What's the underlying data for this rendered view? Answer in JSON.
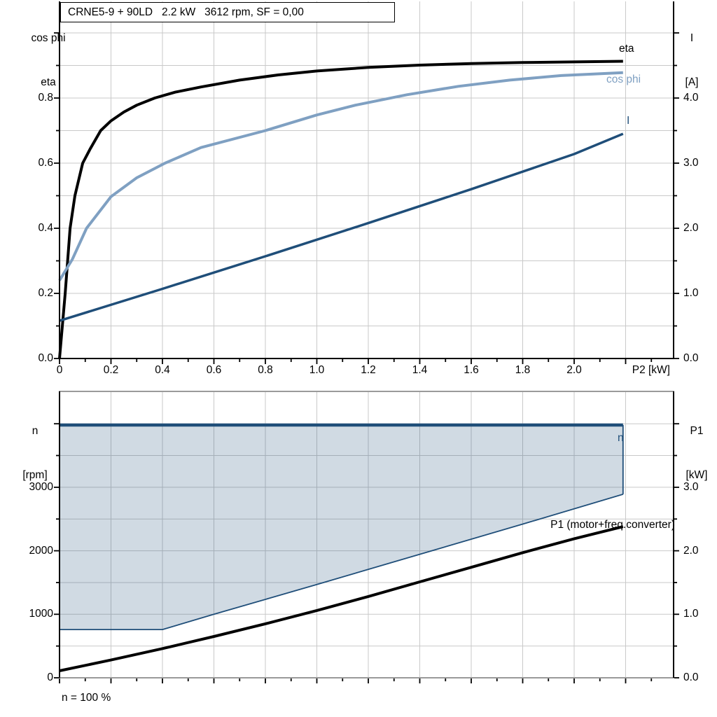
{
  "header": {
    "title": "CRNE5-9 + 90LD   2.2 kW   3612 rpm, SF = 0,00"
  },
  "top_chart": {
    "left_axis_unit_top": "cos phi",
    "left_axis_unit_bottom": "eta",
    "right_axis_unit_top": "I",
    "right_axis_unit_bottom": "[A]",
    "x_axis_title": "P2 [kW]",
    "curve_labels": {
      "eta": "eta",
      "cos_phi": "cos phi",
      "current": "I"
    }
  },
  "bottom_chart": {
    "left_axis_unit_top": "n",
    "left_axis_unit_bottom": "[rpm]",
    "right_axis_unit_top": "P1",
    "right_axis_unit_bottom": "[kW]",
    "curve_labels": {
      "n": "n",
      "p1": "P1 (motor+freq.converter)"
    },
    "annotation": "n = 100 %"
  },
  "colors": {
    "dark_blue": "#1F4E79",
    "light_blue": "#7FA0C2",
    "black": "#000000",
    "gridline": "#C9C9C9",
    "frame_gray": "#9A9A9A",
    "area_fill": "#1F4E79",
    "area_opacity": 0.21
  },
  "chart_data": [
    {
      "type": "line",
      "title": "CRNE5-9 + 90LD   2.2 kW   3612 rpm, SF = 0,00",
      "xlabel": "P2 [kW]",
      "ylabel_left": "cos phi / eta",
      "ylabel_right": "I [A]",
      "xlim": [
        0,
        2.375
      ],
      "ylim_left": [
        0,
        1.097
      ],
      "ylim_right": [
        0,
        5.48
      ],
      "grid": true,
      "legend_position": "inline-right",
      "x_tick_values": [
        0,
        0.2,
        0.4,
        0.6,
        0.8,
        1.0,
        1.2,
        1.4,
        1.6,
        1.8,
        2.0
      ],
      "x_tick_labels": [
        "0",
        "0.2",
        "0.4",
        "0.6",
        "0.8",
        "1.0",
        "1.2",
        "1.4",
        "1.6",
        "1.8",
        "2.0"
      ],
      "y_left_tick_values": [
        0,
        0.2,
        0.4,
        0.6,
        0.8
      ],
      "y_left_tick_labels": [
        "0.0",
        "0.2",
        "0.4",
        "0.6",
        "0.8"
      ],
      "y_right_tick_values": [
        0,
        1,
        2,
        3,
        4
      ],
      "y_right_tick_labels": [
        "0.0",
        "1.0",
        "2.0",
        "3.0",
        "4.0"
      ],
      "series": [
        {
          "name": "eta",
          "axis": "left",
          "color": "#000000",
          "width": 4,
          "x": [
            0,
            0.022,
            0.041,
            0.06,
            0.09,
            0.12,
            0.16,
            0.2,
            0.25,
            0.3,
            0.37,
            0.45,
            0.55,
            0.7,
            0.85,
            1.0,
            1.2,
            1.4,
            1.6,
            1.8,
            2.0,
            2.19
          ],
          "y": [
            0,
            0.2,
            0.4,
            0.5,
            0.6,
            0.645,
            0.7,
            0.73,
            0.757,
            0.778,
            0.8,
            0.818,
            0.834,
            0.855,
            0.871,
            0.883,
            0.894,
            0.901,
            0.906,
            0.909,
            0.911,
            0.913
          ]
        },
        {
          "name": "cos phi",
          "axis": "left",
          "color": "#7FA0C2",
          "width": 4,
          "x": [
            0,
            0.05,
            0.105,
            0.2,
            0.3,
            0.41,
            0.55,
            0.8,
            1.0,
            1.15,
            1.35,
            1.55,
            1.75,
            1.95,
            2.19
          ],
          "y": [
            0.24,
            0.305,
            0.4,
            0.497,
            0.555,
            0.6,
            0.648,
            0.7,
            0.748,
            0.778,
            0.81,
            0.836,
            0.855,
            0.869,
            0.878
          ]
        },
        {
          "name": "I",
          "axis": "right",
          "color": "#1F4E79",
          "width": 3.5,
          "x": [
            0,
            0.4,
            0.8,
            1.2,
            1.6,
            2.0,
            2.19
          ],
          "y": [
            0.58,
            1.07,
            1.57,
            2.08,
            2.6,
            3.14,
            3.45
          ]
        }
      ]
    },
    {
      "type": "line",
      "title": "",
      "xlabel": "",
      "ylabel_left": "n [rpm]",
      "ylabel_right": "P1 [kW]",
      "annotation": "n = 100 %",
      "xlim": [
        0,
        2.375
      ],
      "ylim_left": [
        0,
        4510
      ],
      "ylim_right": [
        0,
        4.51
      ],
      "grid": true,
      "y_left_tick_values": [
        0,
        1000,
        2000,
        3000
      ],
      "y_left_tick_labels": [
        "0",
        "1000",
        "2000",
        "3000"
      ],
      "y_right_tick_values": [
        0,
        1,
        2,
        3
      ],
      "y_right_tick_labels": [
        "0.0",
        "1.0",
        "2.0",
        "3.0"
      ],
      "series": [
        {
          "name": "n",
          "axis": "left",
          "color": "#1F4E79",
          "width": 4.5,
          "x": [
            0,
            2.19
          ],
          "y": [
            3980,
            3980
          ]
        },
        {
          "name": "speed-range-lower-boundary",
          "axis": "left",
          "color": "#1F4E79",
          "width": 1.8,
          "x": [
            0,
            0.4,
            0.6,
            1.0,
            1.4,
            1.8,
            2.19
          ],
          "y": [
            760,
            760,
            1000,
            1470,
            1945,
            2420,
            2890
          ]
        },
        {
          "name": "speed-range-right-edge",
          "axis": "left",
          "color": "#1F4E79",
          "width": 1.8,
          "x": [
            2.19,
            2.19
          ],
          "y": [
            2890,
            3980
          ]
        },
        {
          "name": "P1 (motor+freq.converter)",
          "axis": "right",
          "color": "#000000",
          "width": 4,
          "x": [
            0,
            0.2,
            0.4,
            0.6,
            0.8,
            1.0,
            1.2,
            1.4,
            1.6,
            1.8,
            2.0,
            2.19
          ],
          "y": [
            0.11,
            0.28,
            0.46,
            0.65,
            0.85,
            1.06,
            1.28,
            1.51,
            1.74,
            1.97,
            2.19,
            2.38
          ]
        }
      ],
      "area": {
        "name": "speed-control-range",
        "fill": "#1F4E79",
        "opacity": 0.21,
        "x": [
          0,
          2.19,
          2.19,
          1.8,
          1.4,
          1.0,
          0.6,
          0.4,
          0
        ],
        "y_rpm": [
          3980,
          3980,
          2890,
          2420,
          1945,
          1470,
          1000,
          760,
          760
        ]
      }
    }
  ]
}
